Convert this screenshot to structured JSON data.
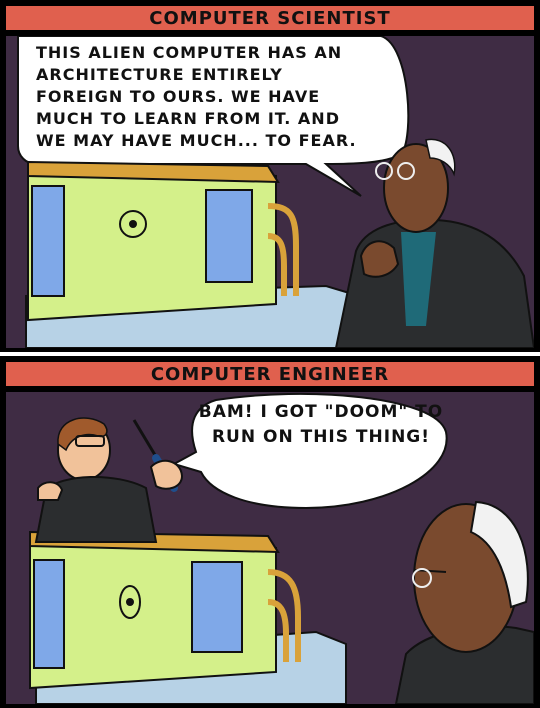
{
  "panels": [
    {
      "caption": "COMPUTER SCIENTIST",
      "speech": "THIS ALIEN COMPUTER HAS AN ARCHITECTURE ENTIRELY FOREIGN TO OURS. WE HAVE MUCH TO LEARN FROM IT. AND WE MAY HAVE MUCH... TO FEAR."
    },
    {
      "caption": "COMPUTER ENGINEER",
      "speech": "BAM! I GOT \"DOOM\" TO RUN ON THIS THING!"
    }
  ],
  "colors": {
    "caption_bg": "#e0604e",
    "background": "#3f2c44",
    "machine_body": "#d4f08a",
    "machine_trim": "#d9a23a",
    "window": "#7fa8e8",
    "pedestal": "#b7d2e6",
    "jacket": "#2b2d2f",
    "shirt": "#1f6a78",
    "skin_dark": "#7a4a2e",
    "skin_light": "#f1c29a",
    "hair_white": "#f2f2f2"
  }
}
